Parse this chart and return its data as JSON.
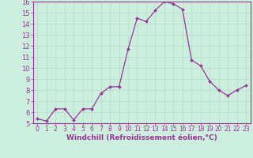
{
  "x": [
    0,
    1,
    2,
    3,
    4,
    5,
    6,
    7,
    8,
    9,
    10,
    11,
    12,
    13,
    14,
    15,
    16,
    17,
    18,
    19,
    20,
    21,
    22,
    23
  ],
  "y": [
    5.4,
    5.2,
    6.3,
    6.3,
    5.3,
    6.3,
    6.3,
    7.7,
    8.3,
    8.3,
    11.7,
    14.5,
    14.2,
    15.2,
    16.0,
    15.8,
    15.3,
    10.7,
    10.2,
    8.8,
    8.0,
    7.5,
    8.0,
    8.4
  ],
  "line_color": "#993399",
  "marker": "D",
  "marker_size": 2.0,
  "linewidth": 0.9,
  "xlabel": "Windchill (Refroidissement éolien,°C)",
  "xlabel_fontsize": 6.5,
  "background_color": "#cceedd",
  "grid_color": "#bbddcc",
  "xlim": [
    -0.5,
    23.5
  ],
  "ylim": [
    5,
    16
  ],
  "yticks": [
    5,
    6,
    7,
    8,
    9,
    10,
    11,
    12,
    13,
    14,
    15,
    16
  ],
  "xticks": [
    0,
    1,
    2,
    3,
    4,
    5,
    6,
    7,
    8,
    9,
    10,
    11,
    12,
    13,
    14,
    15,
    16,
    17,
    18,
    19,
    20,
    21,
    22,
    23
  ],
  "tick_fontsize": 5.5,
  "ytick_fontsize": 6.0,
  "tick_color": "#993399",
  "label_color": "#993399",
  "spine_color": "#993399"
}
